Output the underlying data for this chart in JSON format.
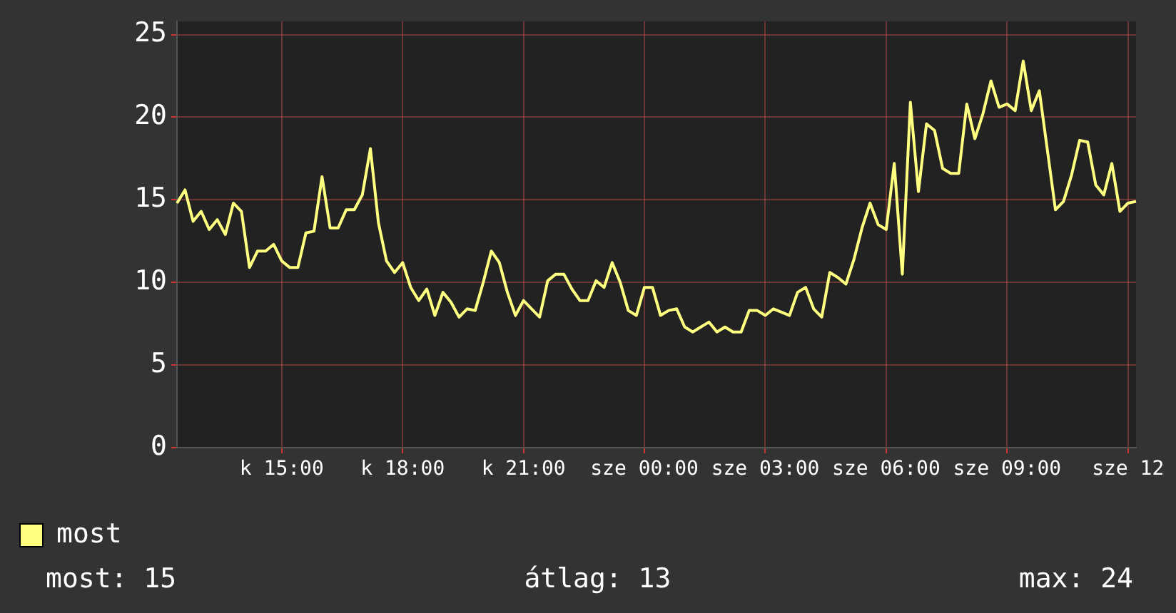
{
  "chart_data": {
    "type": "line",
    "categories": [
      null,
      null,
      null,
      null,
      null,
      null,
      null,
      null,
      null,
      null,
      null,
      null,
      null,
      "k 15:00",
      null,
      null,
      null,
      null,
      null,
      null,
      null,
      null,
      null,
      null,
      null,
      null,
      null,
      null,
      "k 18:00",
      null,
      null,
      null,
      null,
      null,
      null,
      null,
      null,
      null,
      null,
      null,
      null,
      null,
      null,
      "k 21:00",
      null,
      null,
      null,
      null,
      null,
      null,
      null,
      null,
      null,
      null,
      null,
      null,
      null,
      null,
      "sze 00:00",
      null,
      null,
      null,
      null,
      null,
      null,
      null,
      null,
      null,
      null,
      null,
      null,
      null,
      null,
      "sze 03:00",
      null,
      null,
      null,
      null,
      null,
      null,
      null,
      null,
      null,
      null,
      null,
      null,
      null,
      null,
      "sze 06:00",
      null,
      null,
      null,
      null,
      null,
      null,
      null,
      null,
      null,
      null,
      null,
      null,
      null,
      null,
      "sze 09:00",
      null,
      null,
      null,
      null,
      null,
      null,
      null,
      null,
      null,
      null,
      null,
      null,
      null,
      null,
      "sze 12",
      null
    ],
    "series": [
      {
        "name": "most",
        "color": "#ffff80",
        "values": [
          14.8,
          15.6,
          13.7,
          14.3,
          13.2,
          13.8,
          12.9,
          14.8,
          14.3,
          10.9,
          11.9,
          11.9,
          12.3,
          11.3,
          10.9,
          10.9,
          13.0,
          13.1,
          16.4,
          13.3,
          13.3,
          14.4,
          14.4,
          15.3,
          18.1,
          13.6,
          11.3,
          10.6,
          11.2,
          9.7,
          8.9,
          9.6,
          8.0,
          9.4,
          8.8,
          7.9,
          8.4,
          8.3,
          10.0,
          11.9,
          11.2,
          9.4,
          8.0,
          8.9,
          8.4,
          7.9,
          10.1,
          10.5,
          10.5,
          9.6,
          8.9,
          8.9,
          10.1,
          9.7,
          11.2,
          10.0,
          8.3,
          8.0,
          9.7,
          9.7,
          8.0,
          8.3,
          8.4,
          7.3,
          7.0,
          7.3,
          7.6,
          7.0,
          7.3,
          7.0,
          7.0,
          8.3,
          8.3,
          8.0,
          8.4,
          8.2,
          8.0,
          9.4,
          9.7,
          8.4,
          7.9,
          10.6,
          10.3,
          9.9,
          11.4,
          13.3,
          14.8,
          13.5,
          13.2,
          17.2,
          10.5,
          20.9,
          15.5,
          19.6,
          19.2,
          16.9,
          16.6,
          16.6,
          20.8,
          18.7,
          20.2,
          22.2,
          20.6,
          20.8,
          20.4,
          23.4,
          20.4,
          21.6,
          18.0,
          14.4,
          14.9,
          16.5,
          18.6,
          18.5,
          15.9,
          15.3,
          17.2,
          14.3,
          14.8,
          14.9
        ]
      }
    ],
    "ylim": [
      0,
      25.8
    ],
    "yticks": [
      0,
      5,
      10,
      15,
      20,
      25
    ],
    "grid": true,
    "legend": "bottom left",
    "marker": "none",
    "line_style": "solid",
    "annotations": [
      "most: 15",
      "átlag: 13",
      "max: 24"
    ]
  }
}
